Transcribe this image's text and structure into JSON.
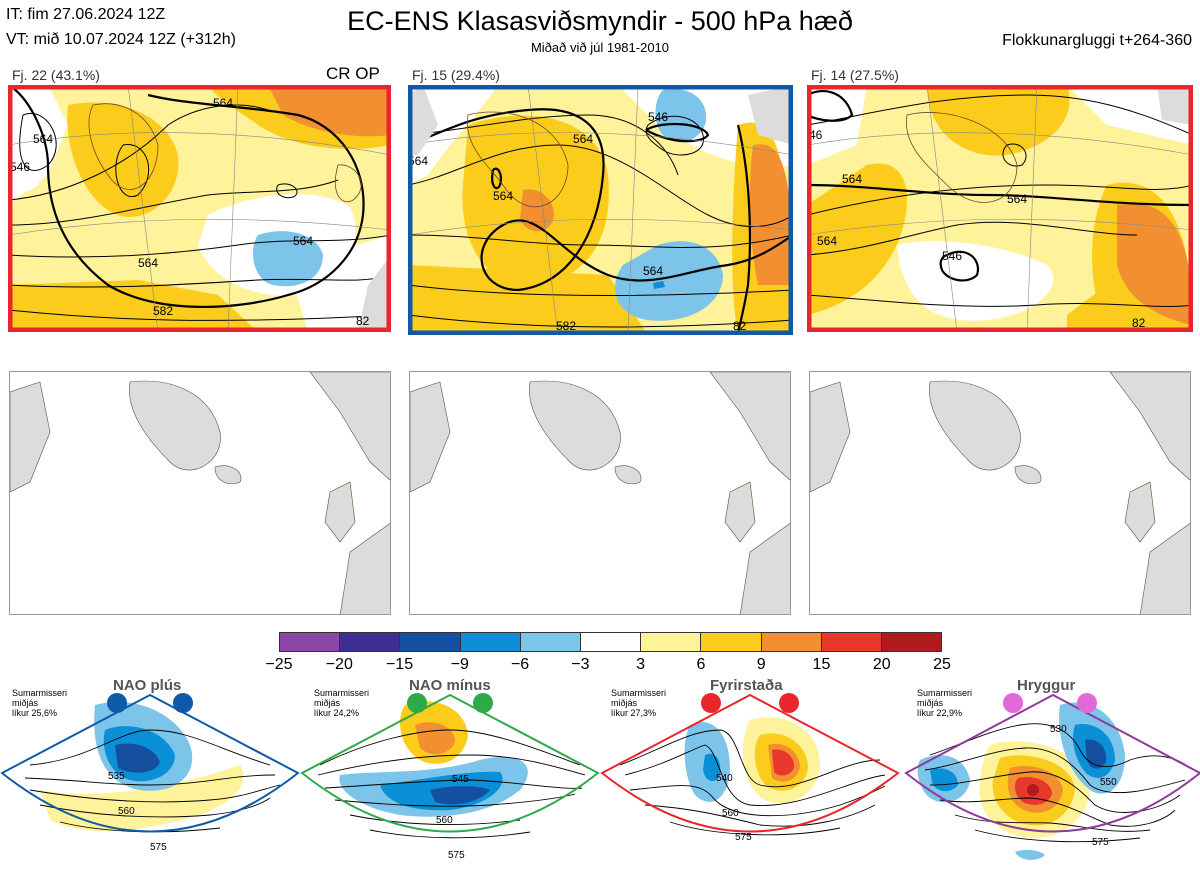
{
  "header": {
    "it_line": "IT: fim 27.06.2024 12Z",
    "vt_line": "VT: mið 10.07.2024 12Z  (+312h)",
    "title": "EC-ENS Klasasviðsmyndir - 500 hPa hæð",
    "subtitle": "Miðað við júl 1981-2010",
    "window": "Flokkunargluggi t+264-360"
  },
  "clusters": [
    {
      "label": "Fj. 22 (43.1%)",
      "tag": "CR OP",
      "frame_color": "#e8262b",
      "contours": [
        "564",
        "564",
        "564",
        "564",
        "582",
        "546",
        "82"
      ]
    },
    {
      "label": "Fj. 15 (29.4%)",
      "tag": "",
      "frame_color": "#0f5aa8",
      "contours": [
        "546",
        "564",
        "564",
        "564",
        "564",
        "582",
        "82"
      ]
    },
    {
      "label": "Fj. 14 (27.5%)",
      "tag": "",
      "frame_color": "#e8262b",
      "contours": [
        "564",
        "564",
        "564",
        "546",
        "82",
        "46"
      ]
    }
  ],
  "colorbar": {
    "ticks": [
      "−25",
      "−20",
      "−15",
      "−9",
      "−6",
      "−3",
      "3",
      "6",
      "9",
      "15",
      "20",
      "25"
    ],
    "colors": [
      "#8b47a3",
      "#3d2f8f",
      "#1550a0",
      "#0b8fd6",
      "#7cc4ea",
      "#ffffff",
      "#fef29a",
      "#fbcc1c",
      "#f29031",
      "#e8372b",
      "#b11a1e"
    ]
  },
  "regimes": [
    {
      "name": "NAO plús",
      "season": "Sumarmisseri",
      "average": "miðjás",
      "chance": "líkur 25,6%",
      "color": "#0f5aa8",
      "contours": [
        "535",
        "560",
        "575"
      ]
    },
    {
      "name": "NAO mínus",
      "season": "Sumarmisseri",
      "average": "miðjás",
      "chance": "líkur 24,2%",
      "color": "#2daa4a",
      "contours": [
        "545",
        "560",
        "575"
      ]
    },
    {
      "name": "Fyrirstaða",
      "season": "Sumarmisseri",
      "average": "miðjás",
      "chance": "líkur 27,3%",
      "color": "#e8262b",
      "contours": [
        "540",
        "560",
        "575"
      ]
    },
    {
      "name": "Hryggur",
      "season": "Sumarmisseri",
      "average": "miðjás",
      "chance": "líkur 22,9%",
      "color": "#8e3a98",
      "contours": [
        "530",
        "550",
        "575"
      ]
    }
  ]
}
